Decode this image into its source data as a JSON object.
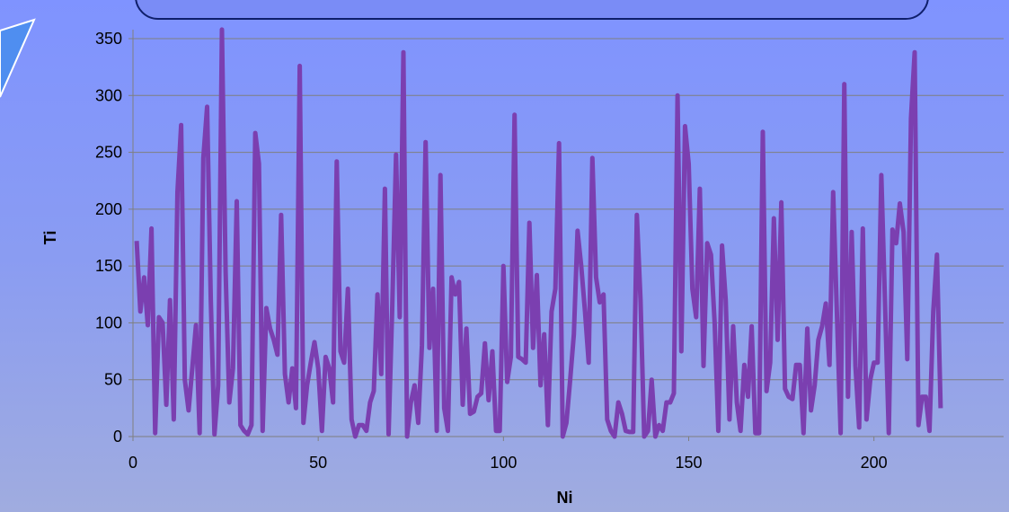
{
  "chart_data": {
    "type": "line",
    "xlabel": "Ni",
    "ylabel": "Ti",
    "xlim": [
      0,
      235
    ],
    "ylim": [
      0,
      350
    ],
    "x_ticks": [
      0,
      50,
      100,
      150,
      200
    ],
    "y_ticks": [
      0,
      50,
      100,
      150,
      200,
      250,
      300,
      350
    ],
    "grid": "horizontal",
    "series_color": "#7b3fb0",
    "x": [
      1,
      2,
      3,
      4,
      5,
      6,
      7,
      8,
      9,
      10,
      11,
      12,
      13,
      14,
      15,
      16,
      17,
      18,
      19,
      20,
      21,
      22,
      23,
      24,
      25,
      26,
      27,
      28,
      29,
      30,
      31,
      32,
      33,
      34,
      35,
      36,
      37,
      38,
      39,
      40,
      41,
      42,
      43,
      44,
      45,
      46,
      47,
      48,
      49,
      50,
      51,
      52,
      53,
      54,
      55,
      56,
      57,
      58,
      59,
      60,
      61,
      62,
      63,
      64,
      65,
      66,
      67,
      68,
      69,
      70,
      71,
      72,
      73,
      74,
      75,
      76,
      77,
      78,
      79,
      80,
      81,
      82,
      83,
      84,
      85,
      86,
      87,
      88,
      89,
      90,
      91,
      92,
      93,
      94,
      95,
      96,
      97,
      98,
      99,
      100,
      101,
      102,
      103,
      104,
      105,
      106,
      107,
      108,
      109,
      110,
      111,
      112,
      113,
      114,
      115,
      116,
      117,
      118,
      119,
      120,
      121,
      122,
      123,
      124,
      125,
      126,
      127,
      128,
      129,
      130,
      131,
      132,
      133,
      134,
      135,
      136,
      137,
      138,
      139,
      140,
      141,
      142,
      143,
      144,
      145,
      146,
      147,
      148,
      149,
      150,
      151,
      152,
      153,
      154,
      155,
      156,
      157,
      158,
      159,
      160,
      161,
      162,
      163,
      164,
      165,
      166,
      167,
      168,
      169,
      170,
      171,
      172,
      173,
      174,
      175,
      176,
      177,
      178,
      179,
      180,
      181,
      182,
      183,
      184,
      185,
      186,
      187,
      188,
      189,
      190,
      191,
      192,
      193,
      194,
      195,
      196,
      197,
      198,
      199,
      200,
      201,
      202,
      203,
      204,
      205,
      206,
      207,
      208,
      209,
      210,
      211,
      212,
      213,
      214,
      215,
      216,
      217,
      218
    ],
    "values": [
      172,
      110,
      140,
      98,
      183,
      3,
      105,
      100,
      28,
      120,
      15,
      215,
      274,
      50,
      23,
      60,
      98,
      3,
      245,
      290,
      120,
      2,
      45,
      360,
      145,
      30,
      60,
      207,
      10,
      5,
      2,
      10,
      267,
      240,
      5,
      113,
      95,
      85,
      72,
      195,
      55,
      30,
      60,
      25,
      326,
      12,
      45,
      65,
      83,
      60,
      5,
      70,
      60,
      30,
      242,
      75,
      65,
      130,
      15,
      0,
      10,
      10,
      5,
      30,
      40,
      125,
      55,
      218,
      2,
      115,
      248,
      105,
      338,
      0,
      30,
      45,
      12,
      80,
      259,
      78,
      130,
      5,
      230,
      25,
      5,
      140,
      125,
      136,
      28,
      95,
      20,
      22,
      35,
      38,
      82,
      32,
      75,
      5,
      5,
      150,
      48,
      70,
      283,
      70,
      68,
      65,
      188,
      78,
      142,
      45,
      90,
      10,
      110,
      130,
      258,
      0,
      12,
      50,
      90,
      181,
      150,
      110,
      65,
      245,
      140,
      118,
      125,
      15,
      5,
      0,
      30,
      20,
      5,
      4,
      4,
      195,
      120,
      0,
      5,
      50,
      0,
      10,
      5,
      30,
      30,
      38,
      300,
      75,
      273,
      240,
      130,
      105,
      218,
      62,
      170,
      160,
      100,
      5,
      168,
      120,
      15,
      97,
      30,
      5,
      63,
      35,
      97,
      3,
      3,
      268,
      40,
      65,
      192,
      85,
      206,
      42,
      35,
      33,
      63,
      63,
      3,
      95,
      23,
      45,
      85,
      97,
      117,
      63,
      215,
      110,
      3,
      310,
      35,
      180,
      62,
      8,
      183,
      15,
      50,
      65,
      65,
      230,
      115,
      3,
      182,
      170,
      205,
      180,
      68,
      280,
      338,
      10,
      35,
      35,
      5,
      110,
      160,
      25
    ]
  }
}
